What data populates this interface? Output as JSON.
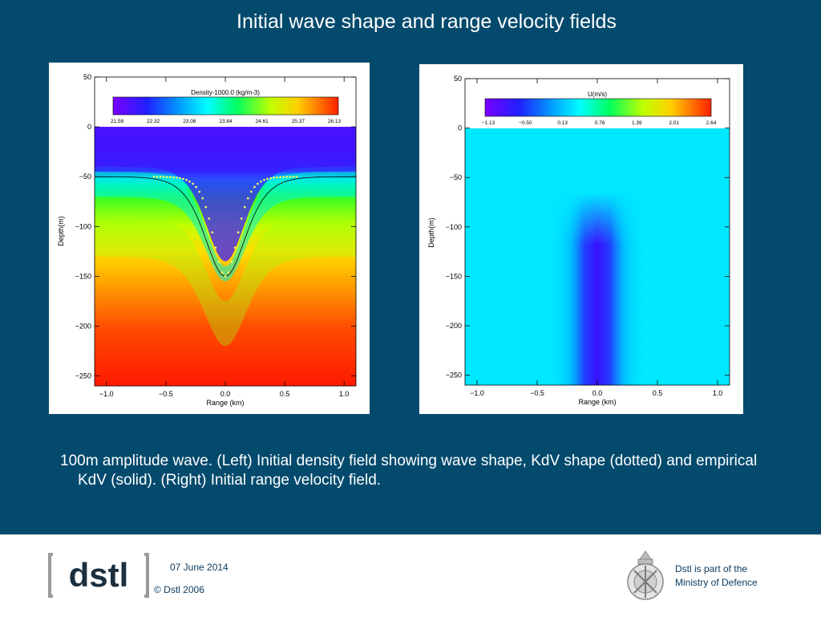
{
  "slide": {
    "title": "Initial wave shape and range velocity fields",
    "caption": "100m amplitude wave. (Left) Initial density field showing wave shape, KdV shape (dotted) and empirical KdV (solid). (Right) Initial range velocity field."
  },
  "footer": {
    "date": "07 June 2014",
    "copyright": "© Dstl 2006",
    "mod_line1": "Dstl is part of the",
    "mod_line2": "Ministry of Defence",
    "logo_text": "[dstl]"
  },
  "colors": {
    "slide_background": "#034a6d",
    "footer_text": "#0c3c60"
  },
  "chart_data": [
    {
      "type": "heatmap",
      "field": "density",
      "colorbar_title": "Density-1000.0 (kg/m-3)",
      "colorbar_ticks": [
        "21.58",
        "22.32",
        "23.08",
        "23.84",
        "24.61",
        "25.37",
        "26.13"
      ],
      "colorbar_range": [
        21.58,
        26.13
      ],
      "xlabel": "Range (km)",
      "ylabel": "Depth(m)",
      "xticks": [
        "−1.0",
        "−0.5",
        "0.0",
        "0.5",
        "1.0"
      ],
      "yticks": [
        "50",
        "0",
        "−50",
        "−100",
        "−150",
        "−200",
        "−250"
      ],
      "xlim": [
        -1.1,
        1.1
      ],
      "ylim": [
        -260,
        50
      ],
      "overlays": [
        {
          "name": "KdV shape",
          "style": "dotted",
          "amplitude_m": 100,
          "base_depth_m": -50
        },
        {
          "name": "empirical KdV",
          "style": "solid",
          "amplitude_m": 100,
          "base_depth_m": -50
        }
      ]
    },
    {
      "type": "heatmap",
      "field": "range velocity",
      "colorbar_title": "U(m/s)",
      "colorbar_ticks": [
        "−1.13",
        "−0.50",
        "0.13",
        "0.76",
        "1.39",
        "2.01",
        "2.64"
      ],
      "colorbar_range": [
        -1.13,
        2.64
      ],
      "xlabel": "Range (km)",
      "ylabel": "Depth(m)",
      "xticks": [
        "−1.0",
        "−0.5",
        "0.0",
        "0.5",
        "1.0"
      ],
      "yticks": [
        "50",
        "0",
        "−50",
        "−100",
        "−150",
        "−200",
        "−250"
      ],
      "xlim": [
        -1.1,
        1.1
      ],
      "ylim": [
        -260,
        50
      ]
    }
  ]
}
